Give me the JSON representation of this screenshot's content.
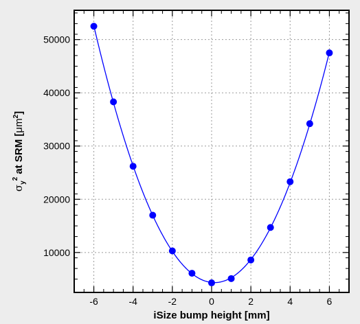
{
  "chart_data": {
    "type": "scatter",
    "title": "",
    "xlabel": "iSize bump height [mm]",
    "ylabel": {
      "symbol": "σ",
      "sub": "y",
      "sup": "2",
      "mid": " at SRM [",
      "unit": "μm",
      "unit_sup": "2",
      "end": "]"
    },
    "xlim": [
      -7,
      7
    ],
    "ylim": [
      2500,
      55500
    ],
    "x_ticks": [
      -6,
      -4,
      -2,
      0,
      2,
      4,
      6
    ],
    "y_ticks": [
      10000,
      20000,
      30000,
      40000,
      50000
    ],
    "grid": true,
    "series": [
      {
        "points": [
          [
            -6,
            52500
          ],
          [
            -5,
            38300
          ],
          [
            -4,
            26200
          ],
          [
            -3,
            17000
          ],
          [
            -2,
            10300
          ],
          [
            -1,
            6100
          ],
          [
            0,
            4300
          ],
          [
            1,
            5100
          ],
          [
            2,
            8600
          ],
          [
            3,
            14700
          ],
          [
            4,
            23300
          ],
          [
            5,
            34200
          ],
          [
            6,
            47500
          ]
        ],
        "color": "#0000ff",
        "fit_curve": true
      }
    ]
  }
}
